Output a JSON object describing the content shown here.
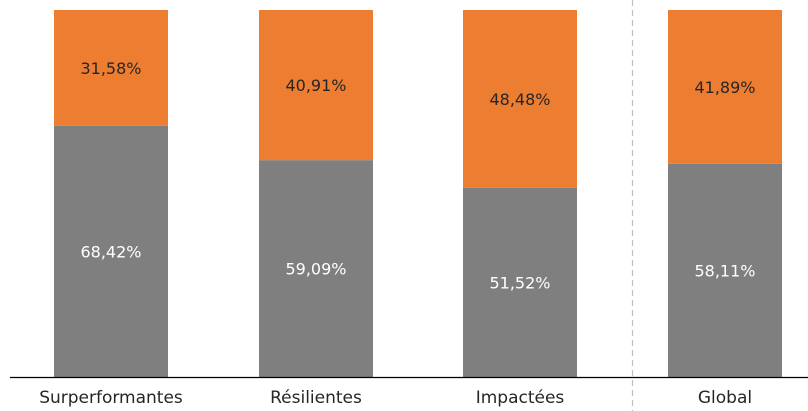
{
  "colors": {
    "series_bottom": "#7f7f7f",
    "series_top": "#ed7d31",
    "label_on_bottom": "#ffffff",
    "label_on_top": "#262626",
    "axis": "#000000",
    "separator": "#bfbfbf"
  },
  "chart_data": {
    "type": "bar",
    "stacked": true,
    "normalized_percent": true,
    "categories": [
      "Surperformantes",
      "Résilientes",
      "Impactées",
      "Global"
    ],
    "series": [
      {
        "values": [
          68.42,
          59.09,
          51.52,
          58.11
        ],
        "labels": [
          "68,42%",
          "59,09%",
          "51,52%",
          "58,11%"
        ]
      },
      {
        "values": [
          31.58,
          40.91,
          48.48,
          41.89
        ],
        "labels": [
          "31,58%",
          "40,91%",
          "48,48%",
          "41,89%"
        ]
      }
    ],
    "ylim": [
      0,
      100
    ],
    "grid": false,
    "legend": "none",
    "separator_before_category": "Global"
  }
}
